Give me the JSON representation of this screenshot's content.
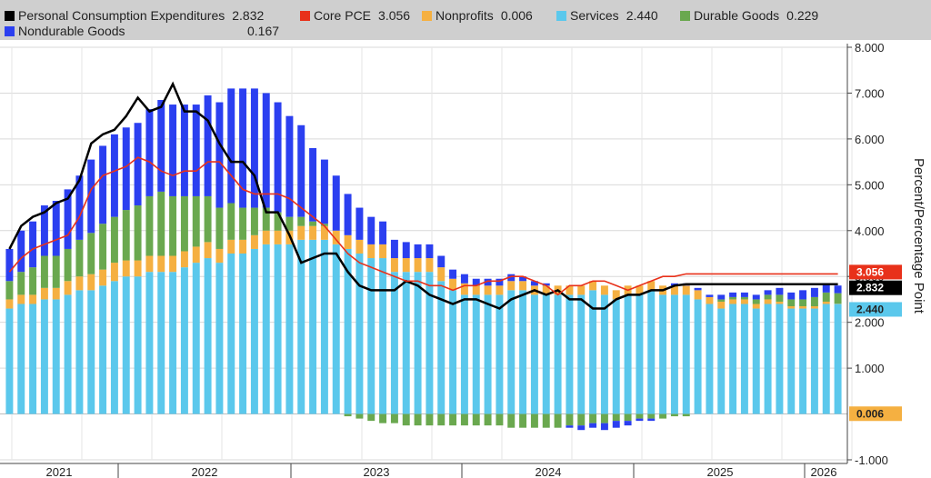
{
  "legend": [
    {
      "label": "Personal Consumption Expenditures",
      "value": "2.832",
      "color": "#000000"
    },
    {
      "label": "Core PCE",
      "value": "3.056",
      "color": "#e8311a"
    },
    {
      "label": "Nonprofits",
      "value": "0.006",
      "color": "#f5b041"
    },
    {
      "label": "Services",
      "value": "2.440",
      "color": "#5bc8ec"
    },
    {
      "label": "Durable Goods",
      "value": "0.229",
      "color": "#6aa84f"
    },
    {
      "label": "Nondurable Goods",
      "value": "0.167",
      "color": "#2b3ff0"
    }
  ],
  "chart_data": {
    "type": "bar",
    "stacked": true,
    "ylabel": "Percent/Percentage Point",
    "ylim": [
      -1,
      8
    ],
    "yticks": [
      "8.000",
      "7.000",
      "6.000",
      "5.000",
      "4.000",
      "3.000",
      "2.000",
      "1.000",
      "-1.000"
    ],
    "xticks": [
      "2021",
      "2022",
      "2023",
      "2024",
      "2025",
      "2026"
    ],
    "grid": true,
    "y_axis_side": "right",
    "series": [
      {
        "name": "Services",
        "color": "#5bc8ec",
        "values": [
          2.3,
          2.4,
          2.4,
          2.5,
          2.5,
          2.6,
          2.7,
          2.7,
          2.8,
          2.9,
          3.0,
          3.0,
          3.1,
          3.1,
          3.1,
          3.2,
          3.3,
          3.4,
          3.3,
          3.5,
          3.5,
          3.6,
          3.7,
          3.7,
          3.7,
          3.8,
          3.8,
          3.8,
          3.7,
          3.6,
          3.5,
          3.4,
          3.4,
          3.1,
          3.1,
          3.1,
          3.1,
          2.9,
          2.7,
          2.6,
          2.6,
          2.6,
          2.6,
          2.7,
          2.7,
          2.6,
          2.6,
          2.6,
          2.6,
          2.6,
          2.7,
          2.6,
          2.5,
          2.6,
          2.6,
          2.7,
          2.6,
          2.6,
          2.6,
          2.5,
          2.4,
          2.3,
          2.4,
          2.4,
          2.3,
          2.4,
          2.4,
          2.3,
          2.3,
          2.3,
          2.4,
          2.4
        ]
      },
      {
        "name": "Nonprofits",
        "color": "#f5b041",
        "values": [
          0.2,
          0.2,
          0.2,
          0.25,
          0.25,
          0.3,
          0.3,
          0.35,
          0.35,
          0.4,
          0.35,
          0.35,
          0.35,
          0.35,
          0.35,
          0.35,
          0.35,
          0.35,
          0.3,
          0.3,
          0.3,
          0.3,
          0.3,
          0.3,
          0.3,
          0.3,
          0.3,
          0.3,
          0.3,
          0.3,
          0.3,
          0.3,
          0.3,
          0.3,
          0.3,
          0.3,
          0.3,
          0.3,
          0.25,
          0.25,
          0.2,
          0.2,
          0.2,
          0.2,
          0.2,
          0.2,
          0.2,
          0.2,
          0.2,
          0.2,
          0.2,
          0.2,
          0.2,
          0.2,
          0.2,
          0.2,
          0.2,
          0.2,
          0.2,
          0.2,
          0.15,
          0.15,
          0.1,
          0.1,
          0.1,
          0.1,
          0.05,
          0.05,
          0.05,
          0.05,
          0.05,
          0.006
        ]
      },
      {
        "name": "Durable Goods",
        "color": "#6aa84f",
        "values": [
          0.4,
          0.5,
          0.6,
          0.7,
          0.7,
          0.7,
          0.8,
          0.9,
          1.0,
          1.0,
          1.1,
          1.2,
          1.3,
          1.4,
          1.3,
          1.2,
          1.1,
          1.0,
          0.9,
          0.8,
          0.7,
          0.6,
          0.5,
          0.4,
          0.3,
          0.2,
          0.1,
          0.05,
          0.0,
          -0.05,
          -0.1,
          -0.15,
          -0.2,
          -0.2,
          -0.25,
          -0.25,
          -0.25,
          -0.25,
          -0.25,
          -0.25,
          -0.25,
          -0.25,
          -0.25,
          -0.3,
          -0.3,
          -0.3,
          -0.3,
          -0.3,
          -0.25,
          -0.25,
          -0.2,
          -0.2,
          -0.15,
          -0.15,
          -0.1,
          -0.1,
          -0.1,
          -0.05,
          -0.05,
          0.0,
          0.0,
          0.05,
          0.05,
          0.05,
          0.1,
          0.1,
          0.15,
          0.15,
          0.15,
          0.2,
          0.2,
          0.229
        ]
      },
      {
        "name": "Nondurable Goods",
        "color": "#2b3ff0",
        "values": [
          0.7,
          0.9,
          1.0,
          1.1,
          1.2,
          1.3,
          1.4,
          1.6,
          1.7,
          1.8,
          1.8,
          1.8,
          1.9,
          2.0,
          2.0,
          2.0,
          2.0,
          2.2,
          2.3,
          2.5,
          2.6,
          2.6,
          2.5,
          2.4,
          2.2,
          2.0,
          1.6,
          1.4,
          1.2,
          0.9,
          0.7,
          0.6,
          0.5,
          0.4,
          0.35,
          0.3,
          0.3,
          0.25,
          0.2,
          0.2,
          0.15,
          0.15,
          0.15,
          0.15,
          0.1,
          0.1,
          0.05,
          0.0,
          -0.05,
          -0.1,
          -0.1,
          -0.15,
          -0.15,
          -0.1,
          -0.05,
          -0.05,
          0.0,
          0.05,
          0.05,
          0.05,
          0.05,
          0.1,
          0.1,
          0.1,
          0.1,
          0.1,
          0.15,
          0.15,
          0.2,
          0.2,
          0.2,
          0.167
        ]
      },
      {
        "name": "Personal Consumption Expenditures",
        "color": "#000000",
        "type": "line",
        "values": [
          3.6,
          4.1,
          4.3,
          4.4,
          4.6,
          4.7,
          5.1,
          5.9,
          6.1,
          6.2,
          6.5,
          6.9,
          6.6,
          6.7,
          7.2,
          6.6,
          6.6,
          6.4,
          5.9,
          5.5,
          5.5,
          5.2,
          4.4,
          4.4,
          3.9,
          3.3,
          3.4,
          3.5,
          3.5,
          3.1,
          2.8,
          2.7,
          2.7,
          2.7,
          2.9,
          2.8,
          2.6,
          2.5,
          2.4,
          2.5,
          2.5,
          2.4,
          2.3,
          2.5,
          2.6,
          2.7,
          2.6,
          2.7,
          2.5,
          2.5,
          2.3,
          2.3,
          2.5,
          2.6,
          2.6,
          2.7,
          2.7,
          2.8,
          2.832,
          2.832,
          2.832,
          2.832,
          2.832,
          2.832,
          2.832,
          2.832,
          2.832,
          2.832,
          2.832,
          2.832,
          2.832,
          2.832
        ]
      },
      {
        "name": "Core PCE",
        "color": "#e8311a",
        "type": "line",
        "values": [
          3.1,
          3.4,
          3.6,
          3.7,
          3.8,
          3.9,
          4.3,
          4.9,
          5.2,
          5.3,
          5.4,
          5.6,
          5.5,
          5.3,
          5.2,
          5.3,
          5.3,
          5.5,
          5.5,
          5.2,
          4.9,
          4.8,
          4.8,
          4.8,
          4.7,
          4.5,
          4.3,
          4.1,
          3.8,
          3.5,
          3.3,
          3.2,
          3.1,
          3.0,
          2.9,
          2.9,
          2.8,
          2.8,
          2.7,
          2.8,
          2.8,
          2.9,
          2.9,
          3.0,
          3.0,
          2.9,
          2.8,
          2.6,
          2.8,
          2.8,
          2.9,
          2.9,
          2.8,
          2.7,
          2.8,
          2.9,
          3.0,
          3.0,
          3.056,
          3.056,
          3.056,
          3.056,
          3.056,
          3.056,
          3.056,
          3.056,
          3.056,
          3.056,
          3.056,
          3.056,
          3.056,
          3.056
        ]
      }
    ]
  },
  "tags": [
    {
      "label": "3.056",
      "color": "#e8311a"
    },
    {
      "label": "2.832",
      "color": "#000000"
    },
    {
      "label": "2.440",
      "color": "#5bc8ec"
    },
    {
      "label": "0.006",
      "color": "#f5b041"
    }
  ]
}
